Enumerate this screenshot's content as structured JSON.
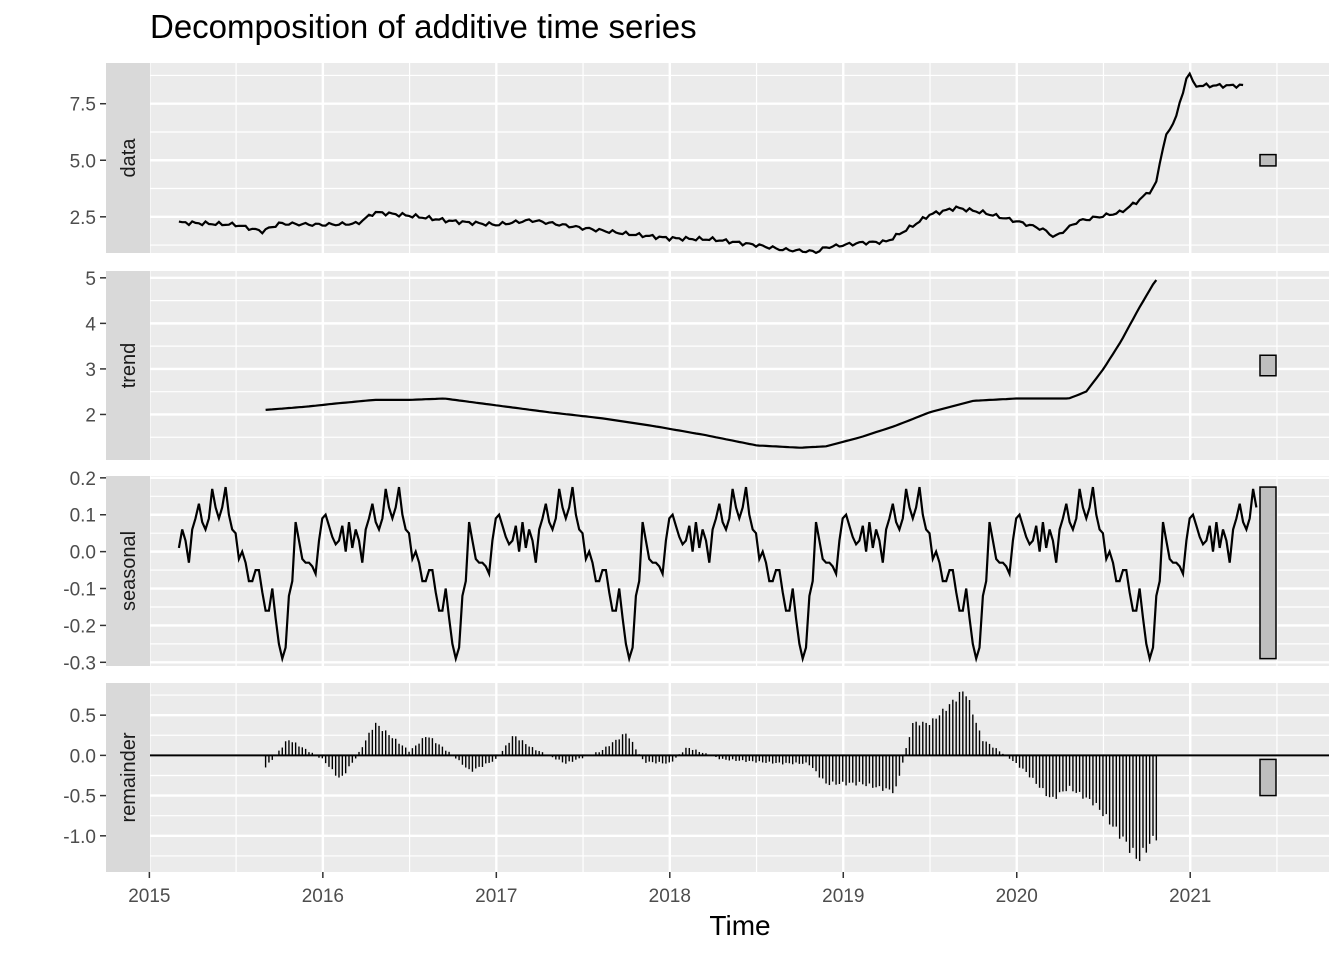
{
  "title": "Decomposition of additive time series",
  "chart_data": {
    "type": "line",
    "title": "Decomposition of additive time series",
    "xlabel": "Time",
    "ylabel": "",
    "xlim": [
      2014.75,
      2021.8
    ],
    "x_ticks": [
      2015,
      2016,
      2017,
      2018,
      2019,
      2020,
      2021
    ],
    "x_tick_labels": [
      "2015",
      "2016",
      "2017",
      "2018",
      "2019",
      "2020",
      "2021"
    ],
    "frequency": 52,
    "grid": true,
    "legend": "none",
    "colors": {
      "panel_bg": "#ebebeb",
      "grid": "#ffffff",
      "strip_bg": "#d9d9d9",
      "line": "#000000",
      "range_bar": "#bebebe"
    },
    "panels": [
      {
        "name": "data",
        "kind": "line",
        "ylim": [
          0.9,
          9.3
        ],
        "y_ticks": [
          2.5,
          5.0,
          7.5
        ],
        "y_tick_labels": [
          "2.5",
          "5.0",
          "7.5"
        ],
        "range_bar": [
          4.75,
          5.25
        ],
        "x": [
          2015.17,
          2015.5,
          2015.65,
          2015.75,
          2016.0,
          2016.2,
          2016.3,
          2016.5,
          2016.75,
          2017.0,
          2017.2,
          2017.5,
          2017.75,
          2018.0,
          2018.25,
          2018.5,
          2018.65,
          2018.85,
          2018.9,
          2019.1,
          2019.25,
          2019.4,
          2019.5,
          2019.65,
          2019.8,
          2020.0,
          2020.15,
          2020.22,
          2020.35,
          2020.6,
          2020.7,
          2020.8,
          2020.85,
          2020.9,
          2020.95,
          2020.99,
          2021.02,
          2021.2,
          2021.3
        ],
        "y": [
          2.25,
          2.15,
          1.85,
          2.2,
          2.15,
          2.2,
          2.7,
          2.55,
          2.3,
          2.15,
          2.35,
          2.0,
          1.75,
          1.55,
          1.5,
          1.25,
          1.05,
          0.95,
          1.15,
          1.35,
          1.4,
          2.1,
          2.6,
          2.9,
          2.7,
          2.3,
          1.95,
          1.6,
          2.3,
          2.7,
          3.2,
          3.85,
          5.9,
          6.6,
          7.7,
          9.05,
          8.3,
          8.3,
          8.3
        ]
      },
      {
        "name": "trend",
        "kind": "line",
        "ylim": [
          1.0,
          5.15
        ],
        "y_ticks": [
          2,
          3,
          4,
          5
        ],
        "y_tick_labels": [
          "2",
          "3",
          "4",
          "5"
        ],
        "range_bar": [
          2.85,
          3.3
        ],
        "x": [
          2015.67,
          2015.9,
          2016.1,
          2016.3,
          2016.5,
          2016.7,
          2017.0,
          2017.3,
          2017.6,
          2017.9,
          2018.2,
          2018.5,
          2018.75,
          2018.9,
          2019.1,
          2019.3,
          2019.5,
          2019.75,
          2020.0,
          2020.3,
          2020.4,
          2020.5,
          2020.6,
          2020.7,
          2020.8
        ],
        "y": [
          2.1,
          2.17,
          2.25,
          2.32,
          2.32,
          2.35,
          2.2,
          2.05,
          1.92,
          1.75,
          1.55,
          1.32,
          1.27,
          1.3,
          1.5,
          1.75,
          2.05,
          2.3,
          2.35,
          2.35,
          2.5,
          3.0,
          3.6,
          4.3,
          4.95
        ]
      },
      {
        "name": "seasonal",
        "kind": "line",
        "ylim": [
          -0.31,
          0.205
        ],
        "y_ticks": [
          -0.3,
          -0.2,
          -0.1,
          0.0,
          0.1,
          0.2
        ],
        "y_tick_labels": [
          "-0.3",
          "-0.2",
          "-0.1",
          "0.0",
          "0.1",
          "0.2"
        ],
        "range_bar": [
          -0.29,
          0.175
        ],
        "x_start": 2015.17,
        "pattern": [
          0.01,
          0.06,
          0.03,
          -0.03,
          0.06,
          0.09,
          0.13,
          0.08,
          0.06,
          0.09,
          0.17,
          0.12,
          0.09,
          0.12,
          0.175,
          0.1,
          0.06,
          0.05,
          -0.02,
          0.0,
          -0.03,
          -0.08,
          -0.08,
          -0.05,
          -0.05,
          -0.11,
          -0.16,
          -0.16,
          -0.1,
          -0.18,
          -0.25,
          -0.29,
          -0.26,
          -0.12,
          -0.08,
          0.08,
          0.03,
          -0.02,
          -0.03,
          -0.03,
          -0.04,
          -0.06,
          0.03,
          0.09,
          0.1,
          0.07,
          0.04,
          0.02,
          0.03,
          0.07,
          0.0,
          0.08
        ],
        "length": 324
      },
      {
        "name": "remainder",
        "kind": "bar",
        "ylim": [
          -1.45,
          0.9
        ],
        "y_ticks": [
          -1.0,
          -0.5,
          0.0,
          0.5
        ],
        "y_tick_labels": [
          "-1.0",
          "-0.5",
          "0.0",
          "0.5"
        ],
        "range_bar": [
          -0.5,
          -0.05
        ],
        "x_start": 2015.67,
        "x_end": 2020.81,
        "x": [
          2015.67,
          2015.8,
          2016.0,
          2016.1,
          2016.2,
          2016.3,
          2016.5,
          2016.6,
          2016.75,
          2016.85,
          2017.0,
          2017.1,
          2017.2,
          2017.4,
          2017.6,
          2017.75,
          2017.85,
          2018.0,
          2018.1,
          2018.3,
          2018.5,
          2018.65,
          2018.8,
          2018.9,
          2019.1,
          2019.2,
          2019.3,
          2019.4,
          2019.5,
          2019.6,
          2019.7,
          2019.8,
          2019.95,
          2020.05,
          2020.2,
          2020.3,
          2020.45,
          2020.6,
          2020.7,
          2020.8
        ],
        "y": [
          -0.15,
          0.2,
          -0.05,
          -0.3,
          0.0,
          0.4,
          0.05,
          0.25,
          0.0,
          -0.2,
          -0.05,
          0.25,
          0.1,
          -0.1,
          0.05,
          0.28,
          -0.08,
          -0.1,
          0.1,
          -0.05,
          -0.08,
          -0.1,
          -0.1,
          -0.35,
          -0.35,
          -0.4,
          -0.45,
          0.4,
          0.4,
          0.6,
          0.82,
          0.2,
          -0.02,
          -0.2,
          -0.55,
          -0.4,
          -0.6,
          -1.0,
          -1.3,
          -1.0
        ]
      }
    ]
  }
}
